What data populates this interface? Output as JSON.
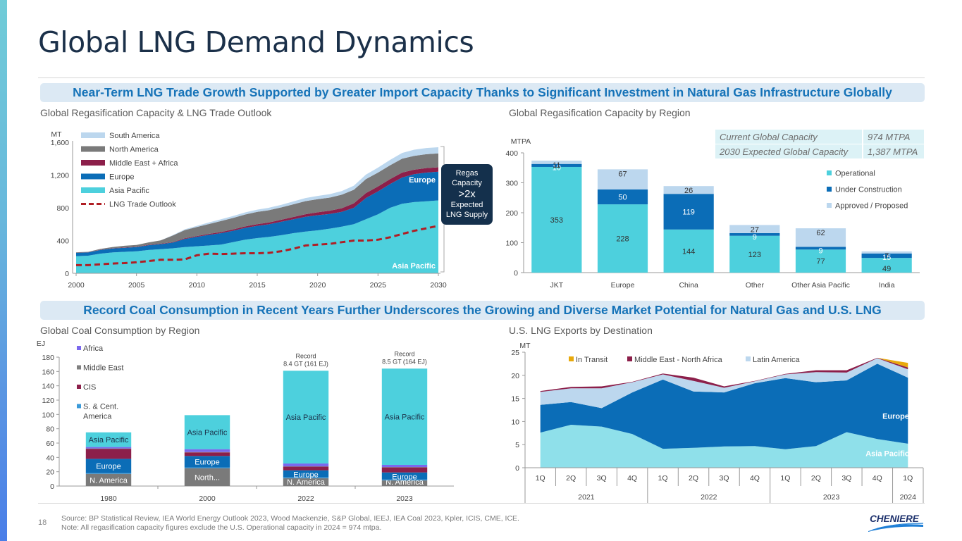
{
  "page": {
    "title": "Global LNG Demand Dynamics",
    "page_number": "18",
    "banner_top": "Near-Term LNG Trade Growth Supported by Greater Import Capacity Thanks to Significant Investment in Natural Gas Infrastructure Globally",
    "banner_bottom": "Record Coal Consumption in Recent Years Further Underscores the Growing and Diverse Market Potential for Natural Gas and U.S. LNG",
    "source_line": "Source: BP Statistical Review, IEA World Energy Outlook 2023, Wood Mackenzie, S&P Global, IEEJ, IEA Coal 2023, Kpler, ICIS, CME, ICE.",
    "note_line": "Note: All regasification capacity figures exclude the U.S. Operational capacity in 2024 = 974 mtpa.",
    "logo_text": "CHENIERE",
    "callout": {
      "line1": "Regas",
      "line2": "Capacity",
      "line3": ">2x",
      "line4": "Expected",
      "line5": "LNG Supply"
    },
    "capacity_table": [
      {
        "label": "Current Global Capacity",
        "value": "974 MTPA"
      },
      {
        "label": "2030 Expected Global Capacity",
        "value": "1,387 MTPA"
      }
    ]
  },
  "colors": {
    "asia_pacific": "#4dd0dd",
    "europe": "#0b6db7",
    "middle_east_africa": "#8c1f4a",
    "north_america": "#7a7a7a",
    "south_america": "#bcd7ee",
    "lng_trade": "#b01e24",
    "under_construction": "#0b6db7",
    "approved": "#bcd7ee",
    "operational": "#4dd0dd",
    "coal_africa": "#7b68ee",
    "coal_middle_east": "#808080",
    "coal_cis": "#8c1f4a",
    "coal_sca": "#3b9ad9",
    "coal_north_america": "#7a7a7a",
    "us_asia": "#8fe0ea",
    "us_europe": "#0b6db7",
    "us_latam": "#bcd7ee",
    "us_mena": "#8c1f4a",
    "us_transit": "#e8a90c"
  },
  "chart_data": [
    {
      "id": "regas_outlook",
      "type": "area",
      "title": "Global Regasification Capacity & LNG Trade Outlook",
      "ylabel": "MT",
      "ylim": [
        0,
        1600
      ],
      "yticks": [
        "0",
        "400",
        "800",
        "1,200",
        "1,600"
      ],
      "ytick_values": [
        0,
        400,
        800,
        1200,
        1600
      ],
      "xlim": [
        2000,
        2030
      ],
      "xticks": [
        "2000",
        "2005",
        "2010",
        "2015",
        "2020",
        "2025",
        "2030"
      ],
      "xtick_values": [
        2000,
        2005,
        2010,
        2015,
        2020,
        2025,
        2030
      ],
      "x": [
        2000,
        2001,
        2002,
        2003,
        2004,
        2005,
        2006,
        2007,
        2008,
        2009,
        2010,
        2011,
        2012,
        2013,
        2014,
        2015,
        2016,
        2017,
        2018,
        2019,
        2020,
        2021,
        2022,
        2023,
        2024,
        2025,
        2026,
        2027,
        2028,
        2029,
        2030
      ],
      "series": [
        {
          "name": "Asia Pacific",
          "key": "asia_pacific",
          "values": [
            210,
            215,
            240,
            255,
            262,
            268,
            285,
            295,
            305,
            320,
            330,
            340,
            350,
            380,
            410,
            430,
            445,
            465,
            490,
            510,
            525,
            545,
            570,
            600,
            660,
            720,
            800,
            850,
            870,
            880,
            890
          ]
        },
        {
          "name": "Europe",
          "key": "europe",
          "values": [
            40,
            40,
            45,
            48,
            50,
            52,
            58,
            62,
            70,
            100,
            115,
            130,
            140,
            140,
            145,
            150,
            155,
            165,
            170,
            180,
            185,
            180,
            180,
            200,
            260,
            280,
            290,
            320,
            340,
            350,
            350
          ]
        },
        {
          "name": "Middle East + Africa",
          "key": "middle_east_africa",
          "values": [
            2,
            2,
            3,
            3,
            4,
            4,
            5,
            5,
            6,
            8,
            10,
            12,
            14,
            16,
            18,
            20,
            22,
            25,
            28,
            32,
            35,
            40,
            45,
            55,
            60,
            60,
            60,
            60,
            55,
            55,
            55
          ]
        },
        {
          "name": "North America",
          "key": "north_america",
          "values": [
            5,
            5,
            10,
            15,
            20,
            22,
            30,
            40,
            80,
            100,
            110,
            120,
            135,
            140,
            145,
            150,
            150,
            150,
            155,
            160,
            160,
            160,
            165,
            165,
            170,
            170,
            170,
            170,
            170,
            170,
            170
          ]
        },
        {
          "name": "South America",
          "key": "south_america",
          "values": [
            0,
            0,
            0,
            0,
            0,
            0,
            0,
            0,
            5,
            10,
            15,
            20,
            22,
            24,
            26,
            28,
            30,
            32,
            35,
            38,
            40,
            42,
            45,
            50,
            55,
            60,
            65,
            70,
            75,
            75,
            75
          ]
        }
      ],
      "lng_trade_outlook": {
        "name": "LNG Trade Outlook",
        "values": [
          100,
          100,
          110,
          120,
          125,
          135,
          150,
          165,
          165,
          170,
          220,
          240,
          235,
          240,
          245,
          245,
          250,
          270,
          300,
          340,
          350,
          360,
          380,
          400,
          400,
          410,
          440,
          480,
          520,
          550,
          580
        ]
      },
      "annotations": [
        "Europe",
        "Asia Pacific"
      ],
      "legend": "top-left"
    },
    {
      "id": "regas_by_region",
      "type": "bar",
      "title": "Global Regasification Capacity by Region",
      "ylabel": "MTPA",
      "ylim": [
        0,
        400
      ],
      "yticks": [
        "0",
        "100",
        "200",
        "300",
        "400"
      ],
      "ytick_values": [
        0,
        100,
        200,
        300,
        400
      ],
      "categories": [
        "JKT",
        "Europe",
        "China",
        "Other",
        "Other Asia Pacific",
        "India"
      ],
      "series": [
        {
          "name": "Operational",
          "key": "operational",
          "values": [
            353,
            228,
            144,
            123,
            77,
            49
          ]
        },
        {
          "name": "Under Construction",
          "key": "under_construction",
          "values": [
            10,
            50,
            119,
            9,
            9,
            15
          ]
        },
        {
          "name": "Approved / Proposed",
          "key": "approved",
          "values": [
            11,
            67,
            26,
            27,
            62,
            7
          ]
        }
      ],
      "legend": "right"
    },
    {
      "id": "coal_consumption",
      "type": "bar",
      "title": "Global Coal Consumption by Region",
      "ylabel": "EJ",
      "ylim": [
        0,
        180
      ],
      "yticks": [
        "0",
        "20",
        "40",
        "60",
        "80",
        "100",
        "120",
        "140",
        "160",
        "180"
      ],
      "ytick_values": [
        0,
        20,
        40,
        60,
        80,
        100,
        120,
        140,
        160,
        180
      ],
      "categories": [
        "1980",
        "2000",
        "2022",
        "2023"
      ],
      "series": [
        {
          "name": "N. America",
          "key": "coal_north_america",
          "labels": [
            "N. America",
            "North...",
            "N. America",
            "N. America"
          ],
          "values": [
            17,
            25,
            11,
            8
          ]
        },
        {
          "name": "S. & Cent. America",
          "key": "coal_sca",
          "labels": [
            "",
            "",
            "",
            ""
          ],
          "values": [
            1,
            1,
            1,
            1
          ]
        },
        {
          "name": "Europe",
          "key": "europe",
          "labels": [
            "Europe",
            "Europe",
            "Europe",
            "Europe"
          ],
          "values": [
            20,
            16,
            10,
            10
          ]
        },
        {
          "name": "CIS",
          "key": "coal_cis",
          "labels": [
            "",
            "",
            "",
            ""
          ],
          "values": [
            14,
            5,
            5,
            7
          ]
        },
        {
          "name": "Middle East",
          "key": "coal_middle_east",
          "labels": [
            "",
            "",
            "",
            ""
          ],
          "values": [
            0.5,
            0.5,
            0.5,
            0.5
          ]
        },
        {
          "name": "Africa",
          "key": "coal_africa",
          "labels": [
            "",
            "",
            "",
            ""
          ],
          "values": [
            2,
            4,
            4,
            3
          ]
        },
        {
          "name": "Asia Pacific",
          "key": "asia_pacific",
          "labels": [
            "Asia Pacific",
            "Asia Pacific",
            "Asia Pacific",
            "Asia Pacific"
          ],
          "values": [
            20.5,
            47.5,
            129.5,
            134.5
          ]
        }
      ],
      "annotations": [
        {
          "category": "2022",
          "line1": "Record",
          "line2": "8.4 GT (161 EJ)"
        },
        {
          "category": "2023",
          "line1": "Record",
          "line2": "8.5 GT (164 EJ)"
        }
      ],
      "legend": [
        "Africa",
        "Middle East",
        "CIS",
        "S. & Cent.|America"
      ],
      "legend_keys": [
        "coal_africa",
        "coal_middle_east",
        "coal_cis",
        "coal_sca"
      ]
    },
    {
      "id": "us_lng_exports",
      "type": "area",
      "title": "U.S. LNG Exports by Destination",
      "ylabel": "MT",
      "ylim": [
        0,
        25
      ],
      "yticks": [
        "0",
        "5",
        "10",
        "15",
        "20",
        "25"
      ],
      "ytick_values": [
        0,
        5,
        10,
        15,
        20,
        25
      ],
      "categories": [
        "1Q",
        "2Q",
        "3Q",
        "4Q",
        "1Q",
        "2Q",
        "3Q",
        "4Q",
        "1Q",
        "2Q",
        "3Q",
        "4Q",
        "1Q"
      ],
      "year_groups": [
        {
          "label": "2021",
          "count": 4
        },
        {
          "label": "2022",
          "count": 4
        },
        {
          "label": "2023",
          "count": 4
        },
        {
          "label": "2024",
          "count": 1
        }
      ],
      "series": [
        {
          "name": "Asia Pacific",
          "key": "us_asia",
          "values": [
            7.6,
            9.3,
            8.9,
            7.3,
            4.1,
            4.3,
            4.6,
            4.7,
            4.0,
            4.7,
            7.7,
            6.2,
            5.2
          ]
        },
        {
          "name": "Europe",
          "key": "us_europe",
          "values": [
            6.0,
            4.9,
            4.0,
            9.0,
            15.0,
            12.2,
            11.7,
            13.6,
            15.4,
            13.8,
            11.2,
            16.3,
            14.3
          ]
        },
        {
          "name": "Latin America",
          "key": "us_latam",
          "values": [
            2.8,
            3.0,
            4.3,
            2.2,
            1.1,
            2.3,
            1.0,
            0.4,
            0.8,
            2.2,
            1.7,
            1.2,
            1.8
          ]
        },
        {
          "name": "Middle East - North Africa",
          "key": "us_mena",
          "values": [
            0.2,
            0.3,
            0.4,
            0.1,
            0.2,
            0.7,
            0.3,
            0.1,
            0.1,
            0.4,
            0.5,
            0.1,
            0.4
          ]
        },
        {
          "name": "In Transit",
          "key": "us_transit",
          "values": [
            0,
            0,
            0,
            0,
            0,
            0,
            0,
            0,
            0,
            0,
            0,
            0,
            1.0
          ]
        }
      ],
      "legend": [
        "In Transit",
        "Middle East - North Africa",
        "Latin America"
      ],
      "legend_keys": [
        "us_transit",
        "us_mena",
        "us_latam"
      ],
      "annotations": [
        "Europe",
        "Asia Pacific"
      ]
    }
  ]
}
